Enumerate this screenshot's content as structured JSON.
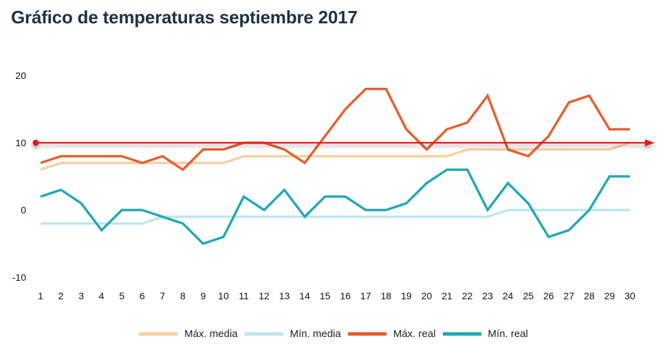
{
  "title": "Gráfico de temperaturas septiembre 2017",
  "legend": [
    {
      "label": "Máx. media",
      "color": "#f9cfa5"
    },
    {
      "label": "Mín. media",
      "color": "#bfe6ec"
    },
    {
      "label": "Máx. real",
      "color": "#e5602e"
    },
    {
      "label": "Mín. real",
      "color": "#22a8b4"
    }
  ],
  "chart_data": {
    "type": "line",
    "title": "Gráfico de temperaturas septiembre 2017",
    "xlabel": "",
    "ylabel": "",
    "x": [
      1,
      2,
      3,
      4,
      5,
      6,
      7,
      8,
      9,
      10,
      11,
      12,
      13,
      14,
      15,
      16,
      17,
      18,
      19,
      20,
      21,
      22,
      23,
      24,
      25,
      26,
      27,
      28,
      29,
      30
    ],
    "ylim": [
      -10,
      20
    ],
    "yticks": [
      -10,
      0,
      10,
      20
    ],
    "grid": false,
    "legend_position": "bottom",
    "series": [
      {
        "name": "Máx. media",
        "color": "#f9cfa5",
        "values": [
          6,
          7,
          7,
          7,
          7,
          7,
          7,
          7,
          7,
          7,
          8,
          8,
          8,
          8,
          8,
          8,
          8,
          8,
          8,
          8,
          8,
          9,
          9,
          9,
          9,
          9,
          9,
          9,
          9,
          10
        ]
      },
      {
        "name": "Mín. media",
        "color": "#bfe6ec",
        "values": [
          -2,
          -2,
          -2,
          -2,
          -2,
          -2,
          -1,
          -1,
          -1,
          -1,
          -1,
          -1,
          -1,
          -1,
          -1,
          -1,
          -1,
          -1,
          -1,
          -1,
          -1,
          -1,
          -1,
          0,
          0,
          0,
          0,
          0,
          0,
          0
        ]
      },
      {
        "name": "Máx. real",
        "color": "#e5602e",
        "values": [
          7,
          8,
          8,
          8,
          8,
          7,
          8,
          6,
          9,
          9,
          10,
          10,
          9,
          7,
          11,
          15,
          18,
          18,
          12,
          9,
          12,
          13,
          17,
          9,
          8,
          11,
          16,
          17,
          12,
          12
        ]
      },
      {
        "name": "Mín. real",
        "color": "#22a8b4",
        "values": [
          2,
          3,
          1,
          -3,
          0,
          0,
          -1,
          -2,
          -5,
          -4,
          2,
          0,
          3,
          -1,
          2,
          2,
          0,
          0,
          1,
          4,
          6,
          6,
          0,
          4,
          1,
          -4,
          -3,
          0,
          5,
          5
        ]
      }
    ],
    "annotations": [
      {
        "type": "reference-line-arrow",
        "y": 10,
        "color": "#e8141c"
      }
    ]
  }
}
